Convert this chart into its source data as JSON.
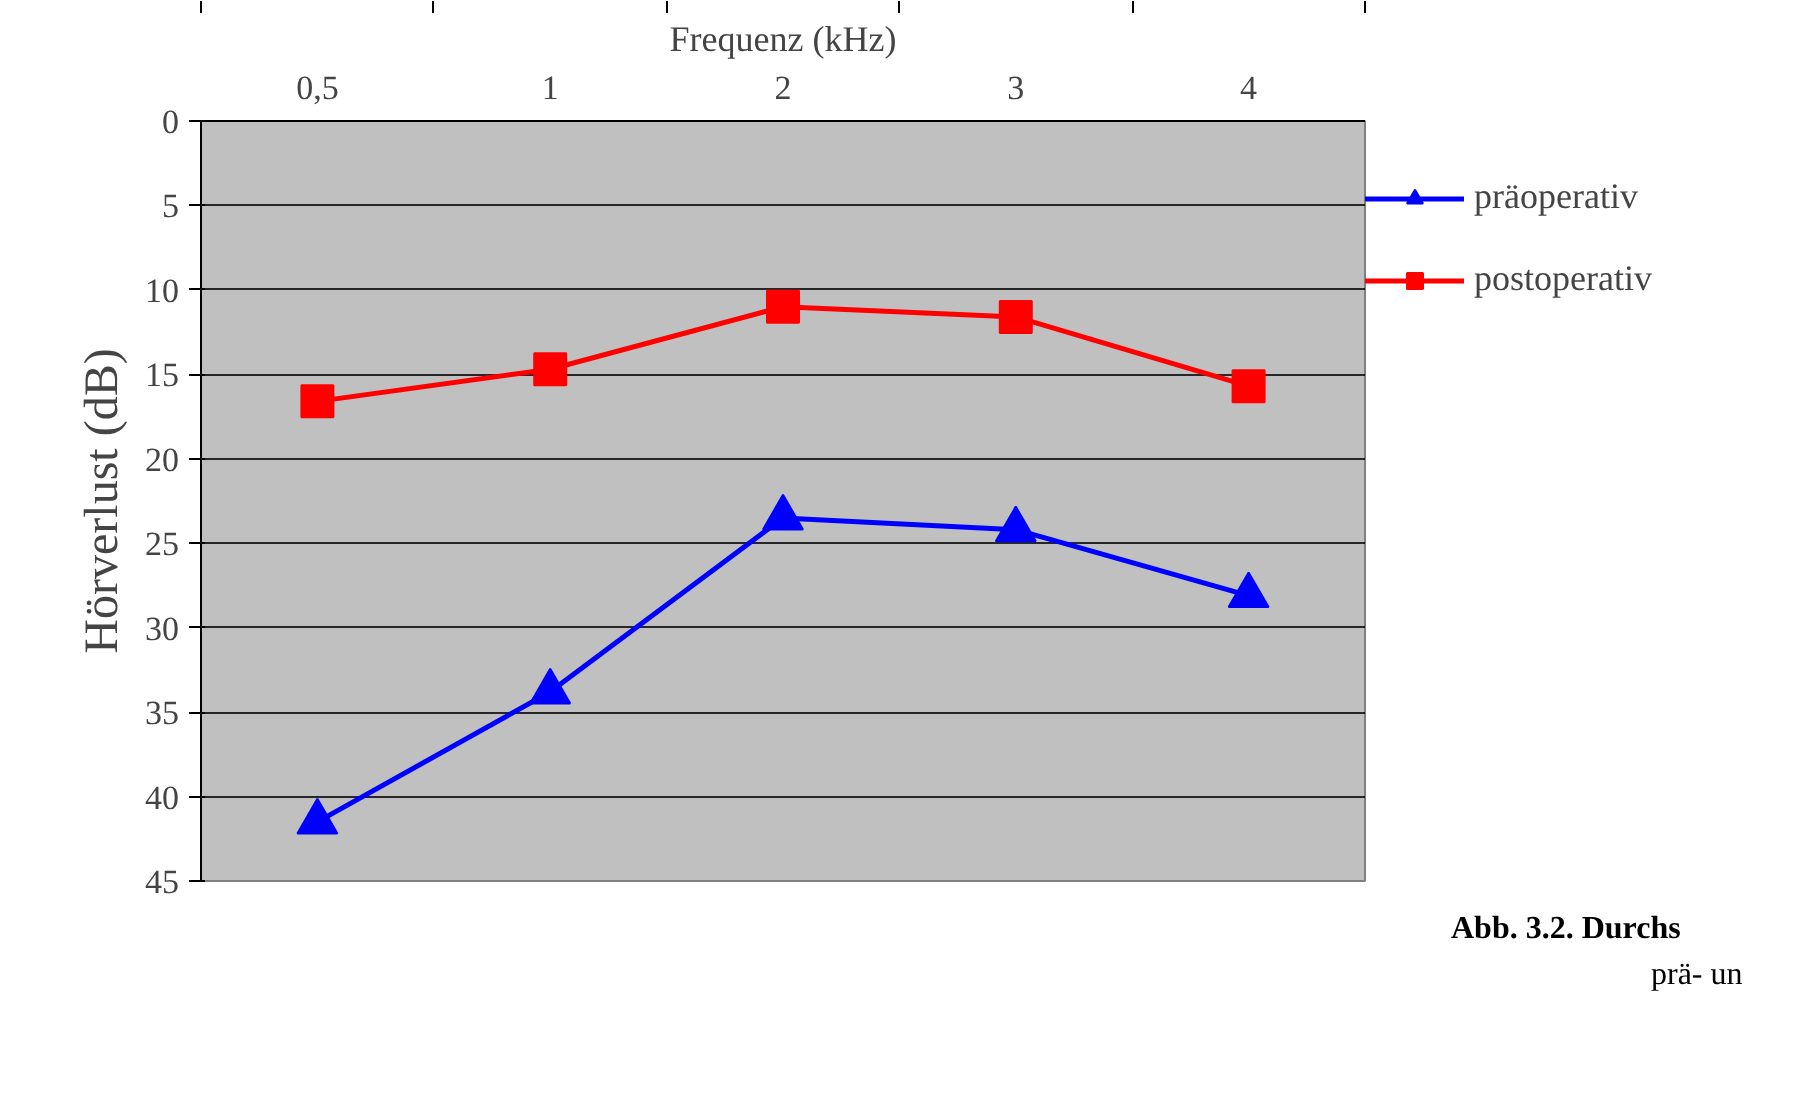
{
  "chart_data": {
    "type": "line",
    "xlabel": "Frequenz (kHz)",
    "ylabel": "Hörverlust (dB)",
    "categories": [
      "0,5",
      "1",
      "2",
      "3",
      "4"
    ],
    "series": [
      {
        "name": "präoperativ",
        "color": "#0000ff",
        "marker": "triangle",
        "values": [
          41.5,
          33.8,
          23.5,
          24.2,
          28.1
        ]
      },
      {
        "name": "postoperativ",
        "color": "#ff0000",
        "marker": "square",
        "values": [
          16.6,
          14.7,
          11.0,
          11.6,
          15.7
        ]
      }
    ],
    "ylim": [
      45,
      0
    ],
    "yticks": [
      0,
      5,
      10,
      15,
      20,
      25,
      30,
      35,
      40,
      45
    ],
    "grid": "y",
    "legend": "right",
    "line_style": "solid",
    "annotations": [
      "Abb. 3.2. Durchs",
      "prä- un"
    ]
  }
}
